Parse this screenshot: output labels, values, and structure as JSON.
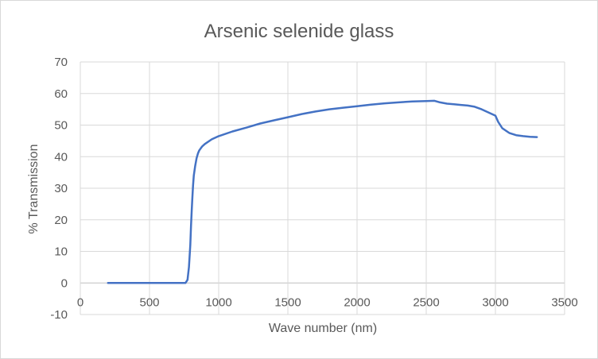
{
  "chart_data": {
    "type": "line",
    "title": "Arsenic selenide glass",
    "xlabel": "Wave number (nm)",
    "ylabel": "% Transmission",
    "xlim": [
      0,
      3500
    ],
    "ylim": [
      -10,
      70
    ],
    "x_ticks": [
      0,
      500,
      1000,
      1500,
      2000,
      2500,
      3000,
      3500
    ],
    "y_ticks": [
      -10,
      0,
      10,
      20,
      30,
      40,
      50,
      60,
      70
    ],
    "grid": true,
    "legend": "none",
    "series_color": "#4472c4",
    "series": [
      {
        "x": [
          200,
          400,
          600,
          700,
          760,
          775,
          785,
          795,
          800,
          805,
          810,
          815,
          820,
          830,
          840,
          850,
          860,
          880,
          900,
          950,
          1000,
          1100,
          1200,
          1300,
          1400,
          1500,
          1600,
          1700,
          1800,
          1900,
          2000,
          2100,
          2200,
          2300,
          2400,
          2500,
          2560,
          2600,
          2650,
          2700,
          2750,
          2800,
          2850,
          2900,
          2950,
          3000,
          3020,
          3050,
          3100,
          3150,
          3200,
          3250,
          3300
        ],
        "y": [
          0,
          0,
          0,
          0,
          0,
          1,
          5,
          12,
          18,
          23,
          27,
          31,
          34,
          37,
          39.5,
          41,
          42,
          43.2,
          44,
          45.5,
          46.5,
          48,
          49.2,
          50.5,
          51.5,
          52.5,
          53.5,
          54.3,
          55,
          55.5,
          56,
          56.5,
          56.9,
          57.2,
          57.5,
          57.6,
          57.7,
          57.2,
          56.8,
          56.6,
          56.4,
          56.2,
          55.8,
          55,
          54,
          53,
          51,
          49,
          47.5,
          46.8,
          46.5,
          46.3,
          46.2
        ]
      }
    ]
  }
}
